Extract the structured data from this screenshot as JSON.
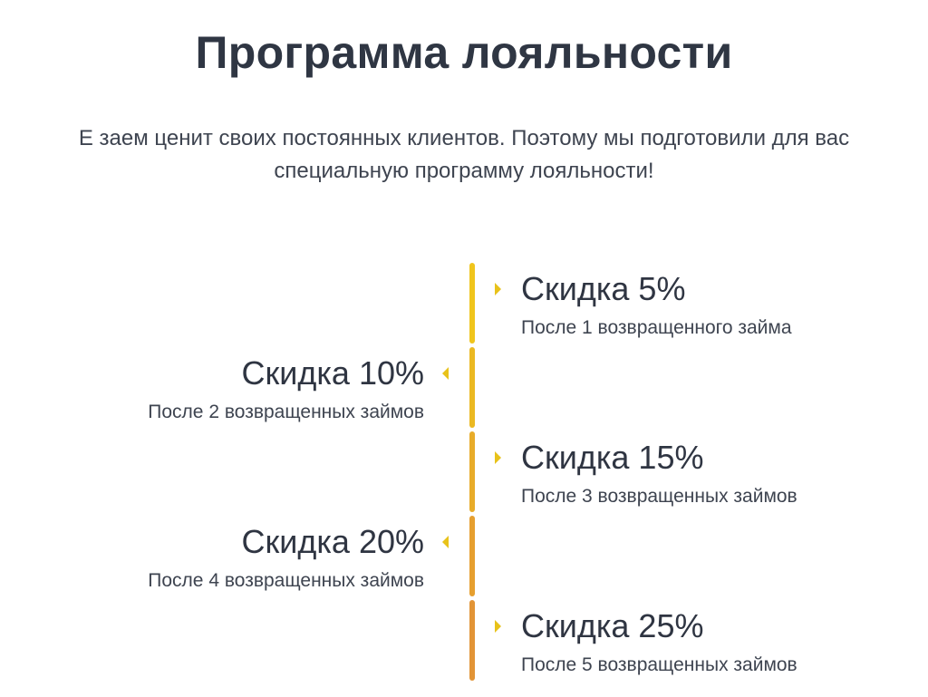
{
  "page": {
    "title": "Программа лояльности",
    "intro_line1": "Е заем ценит своих постоянных клиентов. Поэтому мы подготовили для вас",
    "intro_line2": "специальную программу лояльности!"
  },
  "timeline": {
    "colors": [
      "#f0c51c",
      "#ebb922",
      "#e8ac29",
      "#e69f2f",
      "#e29436"
    ],
    "arrow_color": "#e8c21a"
  },
  "steps": [
    {
      "heading": "Скидка 5%",
      "subtitle": "После 1 возвращенного займа"
    },
    {
      "heading": "Скидка 10%",
      "subtitle": "После 2 возвращенных займов"
    },
    {
      "heading": "Скидка 15%",
      "subtitle": "После 3 возвращенных займов"
    },
    {
      "heading": "Скидка 20%",
      "subtitle": "После 4 возвращенных займов"
    },
    {
      "heading": "Скидка 25%",
      "subtitle": "После 5 возвращенных займов"
    }
  ]
}
